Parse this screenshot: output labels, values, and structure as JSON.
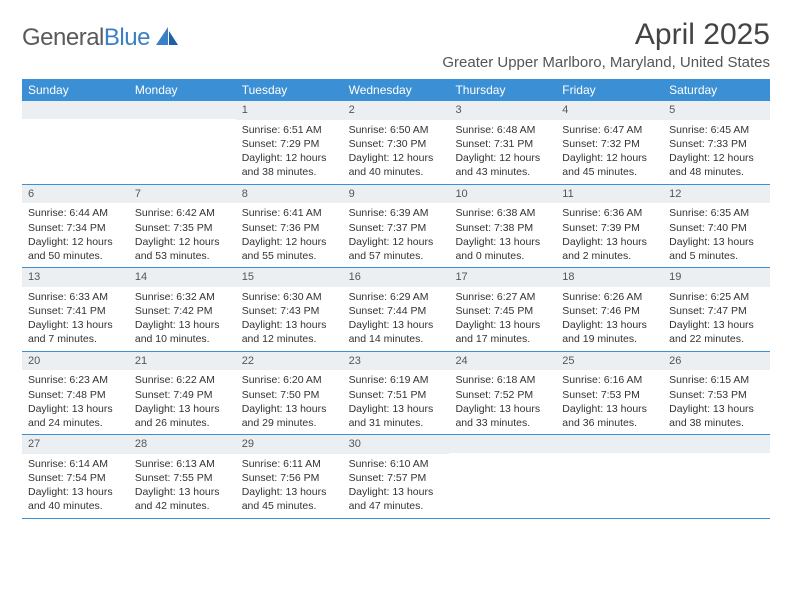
{
  "logo": {
    "part1": "General",
    "part2": "Blue"
  },
  "title": "April 2025",
  "location": "Greater Upper Marlboro, Maryland, United States",
  "colors": {
    "header_bg": "#3b8fd4",
    "header_text": "#ffffff",
    "cell_num_bg": "#eceff1",
    "border": "#3b8fd4",
    "logo_gray": "#5a5a5a",
    "logo_blue": "#3b7fc4"
  },
  "dayNames": [
    "Sunday",
    "Monday",
    "Tuesday",
    "Wednesday",
    "Thursday",
    "Friday",
    "Saturday"
  ],
  "layout": {
    "columns": 7,
    "rows": 5,
    "first_weekday_index": 2,
    "days_in_month": 30
  },
  "days": [
    {
      "n": 1,
      "sunrise": "6:51 AM",
      "sunset": "7:29 PM",
      "daylight": "12 hours and 38 minutes."
    },
    {
      "n": 2,
      "sunrise": "6:50 AM",
      "sunset": "7:30 PM",
      "daylight": "12 hours and 40 minutes."
    },
    {
      "n": 3,
      "sunrise": "6:48 AM",
      "sunset": "7:31 PM",
      "daylight": "12 hours and 43 minutes."
    },
    {
      "n": 4,
      "sunrise": "6:47 AM",
      "sunset": "7:32 PM",
      "daylight": "12 hours and 45 minutes."
    },
    {
      "n": 5,
      "sunrise": "6:45 AM",
      "sunset": "7:33 PM",
      "daylight": "12 hours and 48 minutes."
    },
    {
      "n": 6,
      "sunrise": "6:44 AM",
      "sunset": "7:34 PM",
      "daylight": "12 hours and 50 minutes."
    },
    {
      "n": 7,
      "sunrise": "6:42 AM",
      "sunset": "7:35 PM",
      "daylight": "12 hours and 53 minutes."
    },
    {
      "n": 8,
      "sunrise": "6:41 AM",
      "sunset": "7:36 PM",
      "daylight": "12 hours and 55 minutes."
    },
    {
      "n": 9,
      "sunrise": "6:39 AM",
      "sunset": "7:37 PM",
      "daylight": "12 hours and 57 minutes."
    },
    {
      "n": 10,
      "sunrise": "6:38 AM",
      "sunset": "7:38 PM",
      "daylight": "13 hours and 0 minutes."
    },
    {
      "n": 11,
      "sunrise": "6:36 AM",
      "sunset": "7:39 PM",
      "daylight": "13 hours and 2 minutes."
    },
    {
      "n": 12,
      "sunrise": "6:35 AM",
      "sunset": "7:40 PM",
      "daylight": "13 hours and 5 minutes."
    },
    {
      "n": 13,
      "sunrise": "6:33 AM",
      "sunset": "7:41 PM",
      "daylight": "13 hours and 7 minutes."
    },
    {
      "n": 14,
      "sunrise": "6:32 AM",
      "sunset": "7:42 PM",
      "daylight": "13 hours and 10 minutes."
    },
    {
      "n": 15,
      "sunrise": "6:30 AM",
      "sunset": "7:43 PM",
      "daylight": "13 hours and 12 minutes."
    },
    {
      "n": 16,
      "sunrise": "6:29 AM",
      "sunset": "7:44 PM",
      "daylight": "13 hours and 14 minutes."
    },
    {
      "n": 17,
      "sunrise": "6:27 AM",
      "sunset": "7:45 PM",
      "daylight": "13 hours and 17 minutes."
    },
    {
      "n": 18,
      "sunrise": "6:26 AM",
      "sunset": "7:46 PM",
      "daylight": "13 hours and 19 minutes."
    },
    {
      "n": 19,
      "sunrise": "6:25 AM",
      "sunset": "7:47 PM",
      "daylight": "13 hours and 22 minutes."
    },
    {
      "n": 20,
      "sunrise": "6:23 AM",
      "sunset": "7:48 PM",
      "daylight": "13 hours and 24 minutes."
    },
    {
      "n": 21,
      "sunrise": "6:22 AM",
      "sunset": "7:49 PM",
      "daylight": "13 hours and 26 minutes."
    },
    {
      "n": 22,
      "sunrise": "6:20 AM",
      "sunset": "7:50 PM",
      "daylight": "13 hours and 29 minutes."
    },
    {
      "n": 23,
      "sunrise": "6:19 AM",
      "sunset": "7:51 PM",
      "daylight": "13 hours and 31 minutes."
    },
    {
      "n": 24,
      "sunrise": "6:18 AM",
      "sunset": "7:52 PM",
      "daylight": "13 hours and 33 minutes."
    },
    {
      "n": 25,
      "sunrise": "6:16 AM",
      "sunset": "7:53 PM",
      "daylight": "13 hours and 36 minutes."
    },
    {
      "n": 26,
      "sunrise": "6:15 AM",
      "sunset": "7:53 PM",
      "daylight": "13 hours and 38 minutes."
    },
    {
      "n": 27,
      "sunrise": "6:14 AM",
      "sunset": "7:54 PM",
      "daylight": "13 hours and 40 minutes."
    },
    {
      "n": 28,
      "sunrise": "6:13 AM",
      "sunset": "7:55 PM",
      "daylight": "13 hours and 42 minutes."
    },
    {
      "n": 29,
      "sunrise": "6:11 AM",
      "sunset": "7:56 PM",
      "daylight": "13 hours and 45 minutes."
    },
    {
      "n": 30,
      "sunrise": "6:10 AM",
      "sunset": "7:57 PM",
      "daylight": "13 hours and 47 minutes."
    }
  ],
  "labels": {
    "sunrise": "Sunrise: ",
    "sunset": "Sunset: ",
    "daylight": "Daylight: "
  }
}
